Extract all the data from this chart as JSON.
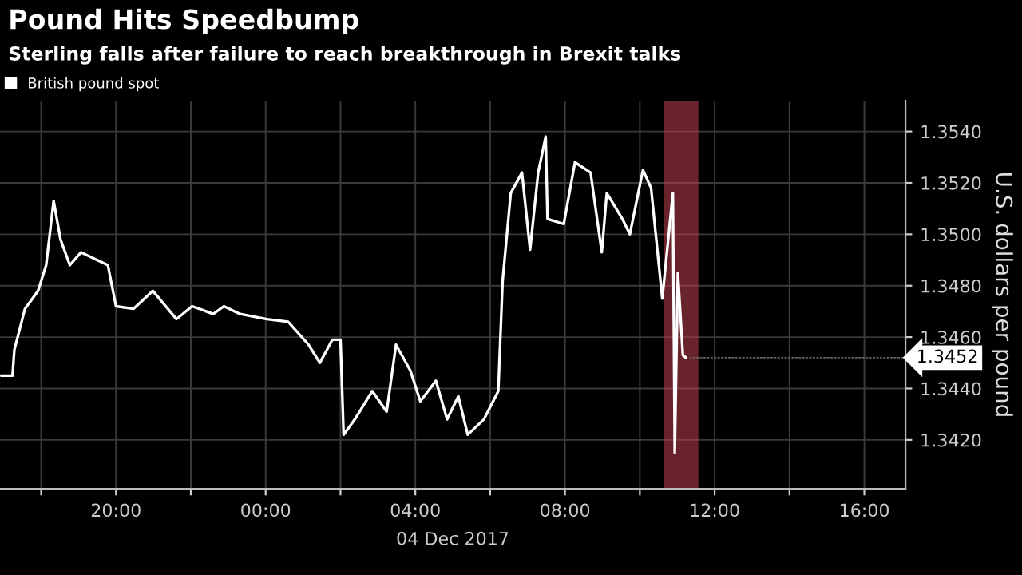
{
  "chart_data": {
    "type": "line",
    "title": "Pound Hits Speedbump",
    "subtitle": "Sterling falls after failure to reach breakthrough in Brexit talks",
    "ylabel": "U.S. dollars per pound",
    "series": [
      {
        "name": "British pound spot",
        "color": "#ffffff",
        "x": [
          "2017-12-03T16:56",
          "2017-12-03T17:14",
          "2017-12-03T17:17",
          "2017-12-03T17:34",
          "2017-12-03T17:55",
          "2017-12-03T18:08",
          "2017-12-03T18:20",
          "2017-12-03T18:31",
          "2017-12-03T18:46",
          "2017-12-03T19:04",
          "2017-12-03T19:47",
          "2017-12-03T20:00",
          "2017-12-03T20:28",
          "2017-12-03T20:59",
          "2017-12-03T21:37",
          "2017-12-03T22:02",
          "2017-12-03T22:36",
          "2017-12-03T22:53",
          "2017-12-03T23:19",
          "2017-12-04T00:02",
          "2017-12-04T00:36",
          "2017-12-04T01:09",
          "2017-12-04T01:27",
          "2017-12-04T01:47",
          "2017-12-04T02:00",
          "2017-12-04T02:05",
          "2017-12-04T02:23",
          "2017-12-04T02:51",
          "2017-12-04T03:14",
          "2017-12-04T03:29",
          "2017-12-04T03:52",
          "2017-12-04T04:08",
          "2017-12-04T04:33",
          "2017-12-04T04:51",
          "2017-12-04T05:09",
          "2017-12-04T05:24",
          "2017-12-04T05:50",
          "2017-12-04T06:13",
          "2017-12-04T06:20",
          "2017-12-04T06:33",
          "2017-12-04T06:51",
          "2017-12-04T07:04",
          "2017-12-04T07:17",
          "2017-12-04T07:29",
          "2017-12-04T07:32",
          "2017-12-04T07:58",
          "2017-12-04T08:16",
          "2017-12-04T08:41",
          "2017-12-04T08:59",
          "2017-12-04T09:07",
          "2017-12-04T09:32",
          "2017-12-04T09:44",
          "2017-12-04T10:05",
          "2017-12-04T10:18",
          "2017-12-04T10:36",
          "2017-12-04T10:53",
          "2017-12-04T10:56",
          "2017-12-04T11:01",
          "2017-12-04T11:09",
          "2017-12-04T11:14"
        ],
        "values": [
          1.3445,
          1.3445,
          1.3455,
          1.3471,
          1.3478,
          1.3488,
          1.3513,
          1.3498,
          1.3488,
          1.3493,
          1.3488,
          1.3472,
          1.3471,
          1.3478,
          1.3467,
          1.3472,
          1.3469,
          1.3472,
          1.3469,
          1.3467,
          1.3466,
          1.3457,
          1.345,
          1.3459,
          1.3459,
          1.3422,
          1.3428,
          1.3439,
          1.3431,
          1.3457,
          1.3447,
          1.3435,
          1.3443,
          1.3428,
          1.3437,
          1.3422,
          1.3428,
          1.3439,
          1.3482,
          1.3516,
          1.3524,
          1.3494,
          1.3524,
          1.3538,
          1.3506,
          1.3504,
          1.3528,
          1.3524,
          1.3493,
          1.3516,
          1.3506,
          1.35,
          1.3525,
          1.3518,
          1.3475,
          1.3516,
          1.3415,
          1.3485,
          1.3453,
          1.3452
        ]
      }
    ],
    "xlim": [
      "2017-12-03T16:54",
      "2017-12-04T17:06"
    ],
    "xticks": [
      {
        "value": "2017-12-03T18:00",
        "label": null
      },
      {
        "value": "2017-12-03T20:00",
        "label": "20:00"
      },
      {
        "value": "2017-12-03T22:00",
        "label": null
      },
      {
        "value": "2017-12-04T00:00",
        "label": "00:00"
      },
      {
        "value": "2017-12-04T02:00",
        "label": null
      },
      {
        "value": "2017-12-04T04:00",
        "label": "04:00"
      },
      {
        "value": "2017-12-04T06:00",
        "label": null
      },
      {
        "value": "2017-12-04T08:00",
        "label": "08:00"
      },
      {
        "value": "2017-12-04T10:00",
        "label": null
      },
      {
        "value": "2017-12-04T12:00",
        "label": "12:00"
      },
      {
        "value": "2017-12-04T14:00",
        "label": null
      },
      {
        "value": "2017-12-04T16:00",
        "label": "16:00"
      }
    ],
    "ylim": [
      1.3401,
      1.3552
    ],
    "yticks": [
      {
        "value": 1.342,
        "label": "1.3420"
      },
      {
        "value": 1.344,
        "label": "1.3440"
      },
      {
        "value": 1.346,
        "label": "1.3460"
      },
      {
        "value": 1.348,
        "label": "1.3480"
      },
      {
        "value": 1.35,
        "label": "1.3500"
      },
      {
        "value": 1.352,
        "label": "1.3520"
      },
      {
        "value": 1.354,
        "label": "1.3540"
      }
    ],
    "bands": [
      {
        "axis": "x",
        "from": "2017-12-04T10:38",
        "to": "2017-12-04T11:34",
        "label": null,
        "color": "#c0404f"
      }
    ],
    "annotations": [
      "04 Dec 2017",
      {
        "text": "1.3452",
        "x": "2017-12-04T11:14",
        "y": 1.3452
      }
    ],
    "grid": true,
    "legend": "top left",
    "line_style": "solid",
    "marker": "none"
  }
}
